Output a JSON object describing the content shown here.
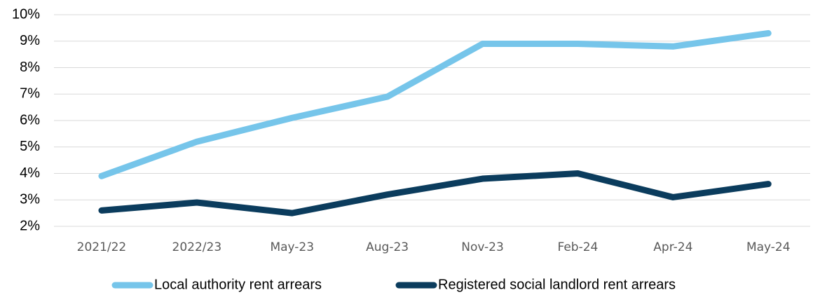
{
  "chart_data": {
    "type": "line",
    "categories": [
      "2021/22",
      "2022/23",
      "May-23",
      "Aug-23",
      "Nov-23",
      "Feb-24",
      "Apr-24",
      "May-24"
    ],
    "series": [
      {
        "name": "Local authority rent arrears",
        "color": "#76c5ea",
        "values": [
          3.9,
          5.2,
          6.1,
          6.9,
          8.9,
          8.9,
          8.8,
          9.3
        ]
      },
      {
        "name": "Registered social landlord rent arrears",
        "color": "#0b3c5d",
        "values": [
          2.6,
          2.9,
          2.5,
          3.2,
          3.8,
          4.0,
          3.1,
          3.6
        ]
      }
    ],
    "ylim": [
      2,
      10
    ],
    "yticks": [
      {
        "value": 2,
        "label": "2%"
      },
      {
        "value": 3,
        "label": "3%"
      },
      {
        "value": 4,
        "label": "4%"
      },
      {
        "value": 5,
        "label": "5%"
      },
      {
        "value": 6,
        "label": "6%"
      },
      {
        "value": 7,
        "label": "7%"
      },
      {
        "value": 8,
        "label": "8%"
      },
      {
        "value": 9,
        "label": "9%"
      },
      {
        "value": 10,
        "label": "10%"
      }
    ],
    "grid": true,
    "legend": "bottom"
  }
}
